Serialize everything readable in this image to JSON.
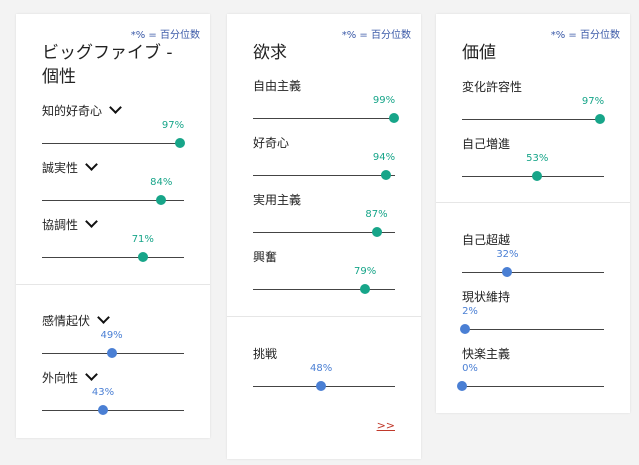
{
  "note": "*% = 百分位数",
  "colors": {
    "green": "#17a589",
    "blue": "#4a7fd4",
    "track": "#444444"
  },
  "personality": {
    "title": "ビッグファイブ - 個性",
    "traits": [
      {
        "label": "知的好奇心",
        "pct": "97%",
        "value": 0.97,
        "color": "green",
        "has_chevron": true
      },
      {
        "label": "誠実性",
        "pct": "84%",
        "value": 0.84,
        "color": "green",
        "has_chevron": true
      },
      {
        "label": "協調性",
        "pct": "71%",
        "value": 0.71,
        "color": "green",
        "has_chevron": true
      },
      {
        "label": "感情起伏",
        "pct": "49%",
        "value": 0.49,
        "color": "blue",
        "has_chevron": true
      },
      {
        "label": "外向性",
        "pct": "43%",
        "value": 0.43,
        "color": "blue",
        "has_chevron": true
      }
    ]
  },
  "needs": {
    "title": "欲求",
    "traits": [
      {
        "label": "自由主義",
        "pct": "99%",
        "value": 0.99,
        "color": "green"
      },
      {
        "label": "好奇心",
        "pct": "94%",
        "value": 0.94,
        "color": "green"
      },
      {
        "label": "実用主義",
        "pct": "87%",
        "value": 0.87,
        "color": "green"
      },
      {
        "label": "興奮",
        "pct": "79%",
        "value": 0.79,
        "color": "green"
      },
      {
        "label": "挑戦",
        "pct": "48%",
        "value": 0.48,
        "color": "blue"
      }
    ],
    "more_label": ">>"
  },
  "values": {
    "title": "価値",
    "traits": [
      {
        "label": "変化許容性",
        "pct": "97%",
        "value": 0.97,
        "color": "green"
      },
      {
        "label": "自己増進",
        "pct": "53%",
        "value": 0.53,
        "color": "green"
      },
      {
        "label": "自己超越",
        "pct": "32%",
        "value": 0.32,
        "color": "blue"
      },
      {
        "label": "現状維持",
        "pct": "2%",
        "value": 0.02,
        "color": "blue"
      },
      {
        "label": "快楽主義",
        "pct": "0%",
        "value": 0.0,
        "color": "blue"
      }
    ]
  }
}
